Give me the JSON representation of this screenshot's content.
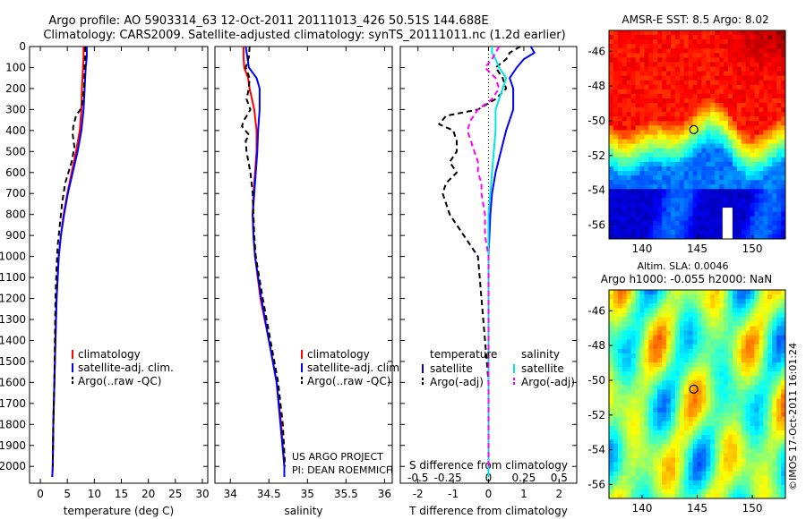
{
  "title_line1": "Argo profile: AO 5903314_63 12-Oct-2011 20111013_426 50.51S 144.688E",
  "title_line2": "Climatology: CARS2009. Satellite-adjusted climatology: synTS_20111011.nc (1.2d earlier)",
  "project_line1": "US ARGO PROJECT",
  "project_line2": "PI: DEAN ROEMMICH",
  "credit": "©IMOS 17-Oct-2011 16:01:24",
  "colors": {
    "climatology": "#ff0000",
    "satellite": "#0000ff",
    "argo": "#000000",
    "satellite_salinity": "#00e5e5",
    "argo_salinity": "#ff00ff"
  },
  "chart_data": [
    {
      "type": "line",
      "xlabel": "temperature (deg C)",
      "ylabel": "",
      "xlim": [
        -2,
        31
      ],
      "ylim": [
        2080,
        0
      ],
      "xticks": [
        "0",
        "5",
        "10",
        "15",
        "20",
        "25",
        "30"
      ],
      "xtick_values": [
        0,
        5,
        10,
        15,
        20,
        25,
        30
      ],
      "yticks": [
        "0",
        "100",
        "200",
        "300",
        "400",
        "500",
        "600",
        "700",
        "800",
        "900",
        "1000",
        "1100",
        "1200",
        "1300",
        "1400",
        "1500",
        "1600",
        "1700",
        "1800",
        "1900",
        "2000"
      ],
      "ytick_values": [
        0,
        100,
        200,
        300,
        400,
        500,
        600,
        700,
        800,
        900,
        1000,
        1100,
        1200,
        1300,
        1400,
        1500,
        1600,
        1700,
        1800,
        1900,
        2000
      ],
      "legend": [
        "climatology",
        "satellite-adj. clim.",
        "Argo(..raw -QC)"
      ],
      "series": [
        {
          "name": "climatology",
          "color": "#ff0000",
          "dash": "",
          "depth": [
            0,
            50,
            100,
            200,
            300,
            400,
            500,
            600,
            700,
            800,
            900,
            1000,
            1200,
            1400,
            1600,
            1800,
            2000,
            2050
          ],
          "values": [
            8.0,
            8.0,
            7.9,
            7.7,
            7.6,
            7.3,
            6.6,
            5.8,
            5.0,
            4.3,
            3.8,
            3.4,
            3.0,
            2.8,
            2.6,
            2.4,
            2.3,
            2.2
          ]
        },
        {
          "name": "satellite-adj. clim.",
          "color": "#0000ff",
          "dash": "",
          "depth": [
            0,
            50,
            100,
            200,
            300,
            400,
            500,
            600,
            700,
            800,
            900,
            1000,
            1200,
            1400,
            1600,
            1800,
            2000,
            2050
          ],
          "values": [
            8.6,
            8.6,
            8.4,
            8.2,
            8.0,
            7.6,
            6.9,
            6.0,
            5.1,
            4.4,
            3.8,
            3.4,
            3.0,
            2.8,
            2.6,
            2.4,
            2.3,
            2.2
          ]
        },
        {
          "name": "Argo(..raw -QC)",
          "color": "#000000",
          "dash": "6,4",
          "depth": [
            0,
            50,
            100,
            200,
            280,
            300,
            330,
            380,
            420,
            480,
            550,
            650,
            750,
            850,
            950,
            1050,
            1200,
            1400,
            1600,
            1800,
            2000
          ],
          "values": [
            8.3,
            8.3,
            8.2,
            8.1,
            7.7,
            7.4,
            6.6,
            6.1,
            6.0,
            6.3,
            5.8,
            4.6,
            4.0,
            3.6,
            3.2,
            3.0,
            2.8,
            2.7,
            2.6,
            2.4,
            2.3
          ]
        }
      ]
    },
    {
      "type": "line",
      "xlabel": "salinity",
      "ylabel": "",
      "xlim": [
        33.8,
        36.1
      ],
      "ylim": [
        2080,
        0
      ],
      "xticks": [
        "34",
        "34.5",
        "35",
        "35.5",
        "36"
      ],
      "xtick_values": [
        34,
        34.5,
        35,
        35.5,
        36
      ],
      "legend": [
        "climatology",
        "satellite-adj. clim.",
        "Argo(..raw -QC)"
      ],
      "series": [
        {
          "name": "climatology",
          "color": "#ff0000",
          "dash": "",
          "depth": [
            0,
            50,
            100,
            150,
            200,
            300,
            400,
            500,
            600,
            700,
            800,
            900,
            1000,
            1200,
            1400,
            1600,
            1800,
            2000,
            2050
          ],
          "values": [
            34.17,
            34.17,
            34.18,
            34.23,
            34.25,
            34.31,
            34.34,
            34.34,
            34.32,
            34.3,
            34.29,
            34.3,
            34.32,
            34.39,
            34.5,
            34.6,
            34.66,
            34.7,
            34.7
          ]
        },
        {
          "name": "satellite-adj. clim.",
          "color": "#0000ff",
          "dash": "",
          "depth": [
            0,
            50,
            100,
            150,
            200,
            300,
            400,
            500,
            600,
            700,
            800,
            900,
            1000,
            1200,
            1400,
            1600,
            1800,
            2000,
            2050
          ],
          "values": [
            34.2,
            34.22,
            34.24,
            34.34,
            34.38,
            34.38,
            34.36,
            34.35,
            34.33,
            34.31,
            34.29,
            34.3,
            34.32,
            34.4,
            34.5,
            34.6,
            34.65,
            34.7,
            34.7
          ]
        },
        {
          "name": "Argo(..raw -QC)",
          "color": "#000000",
          "dash": "6,4",
          "depth": [
            0,
            50,
            100,
            150,
            200,
            250,
            300,
            350,
            380,
            420,
            450,
            500,
            600,
            700,
            800,
            900,
            1000,
            1200,
            1400,
            1600,
            1800,
            2000
          ],
          "values": [
            34.25,
            34.24,
            34.2,
            34.25,
            34.24,
            34.21,
            34.26,
            34.18,
            34.15,
            34.24,
            34.2,
            34.21,
            34.26,
            34.29,
            34.3,
            34.31,
            34.33,
            34.42,
            34.52,
            34.62,
            34.68,
            34.71
          ]
        }
      ]
    },
    {
      "type": "line",
      "xlabel": "T difference from climatology",
      "xlabel2": "S difference from climatology",
      "ylabel": "",
      "xlim": [
        -2.5,
        2.5
      ],
      "ylim": [
        2080,
        0
      ],
      "xticks": [
        "-2",
        "-1",
        "0",
        "1",
        "2"
      ],
      "xtick_values": [
        -2,
        -1,
        0,
        1,
        2
      ],
      "xticks2": [
        "-0.5",
        "-0.25",
        "0",
        "0.25",
        "0.5"
      ],
      "xtick2_values": [
        -2,
        -1,
        0,
        1,
        2
      ],
      "legend_temperature_title": "temperature",
      "legend_salinity_title": "salinity",
      "legend_temperature": [
        "satellite",
        "Argo(-adj)"
      ],
      "legend_salinity": [
        "satellite",
        "Argo(-adj)"
      ],
      "series": [
        {
          "name": "satellite",
          "color": "#0000ff",
          "dash": "",
          "depth": [
            0,
            30,
            60,
            100,
            150,
            200,
            300,
            400,
            500,
            600,
            700,
            800,
            1000,
            1200,
            1400,
            1600,
            1800,
            2000,
            2050
          ],
          "values": [
            1.2,
            1.3,
            1.0,
            0.8,
            0.6,
            0.7,
            0.7,
            0.5,
            0.35,
            0.2,
            0.1,
            0.05,
            0.0,
            0.0,
            0.0,
            0.0,
            0.0,
            0.0,
            0.0
          ]
        },
        {
          "name": "Argo(-adj)",
          "color": "#000000",
          "dash": "6,4",
          "depth": [
            0,
            30,
            60,
            100,
            150,
            200,
            250,
            300,
            330,
            370,
            400,
            450,
            500,
            550,
            600,
            650,
            700,
            800,
            900,
            1000,
            1200,
            1400,
            1600,
            1800,
            2000
          ],
          "values": [
            0.9,
            0.6,
            0.5,
            0.2,
            0.4,
            0.5,
            0.2,
            -0.3,
            -1.2,
            -1.4,
            -1.0,
            -0.9,
            -0.9,
            -1.1,
            -0.9,
            -1.2,
            -1.3,
            -1.1,
            -0.7,
            -0.3,
            -0.2,
            -0.1,
            0.0,
            0.0,
            0.0
          ]
        },
        {
          "name": "satellite",
          "color": "#00e5e5",
          "dash": "",
          "depth": [
            0,
            30,
            60,
            100,
            150,
            200,
            300,
            400,
            500,
            600,
            700,
            800,
            1000,
            1200,
            1400,
            1600,
            1800,
            2000,
            2050
          ],
          "values": [
            0.1,
            0.1,
            0.2,
            0.3,
            0.5,
            0.4,
            0.2,
            0.2,
            0.15,
            0.1,
            0.05,
            0.0,
            0.0,
            0.0,
            0.0,
            0.0,
            0.0,
            0.0,
            0.0
          ]
        },
        {
          "name": "Argo(-adj)",
          "color": "#ff00ff",
          "dash": "6,4",
          "depth": [
            0,
            30,
            60,
            100,
            150,
            200,
            250,
            300,
            350,
            400,
            450,
            500,
            550,
            600,
            650,
            700,
            800,
            900,
            1000,
            1200,
            1400,
            1600,
            1800,
            2000
          ],
          "values": [
            0.3,
            0.2,
            0.1,
            -0.1,
            0.2,
            0.3,
            0.1,
            -0.3,
            -0.5,
            -0.6,
            -0.5,
            -0.4,
            -0.3,
            -0.3,
            -0.2,
            -0.2,
            -0.1,
            -0.1,
            0.0,
            0.0,
            0.0,
            0.0,
            0.0,
            0.0
          ]
        }
      ]
    },
    {
      "type": "heatmap",
      "title": "AMSR-E SST: 8.5 Argo: 8.02",
      "xticks": [
        "140",
        "145",
        "150"
      ],
      "xtick_values": [
        140,
        145,
        150
      ],
      "yticks": [
        "-46",
        "-48",
        "-50",
        "-52",
        "-54",
        "-56"
      ],
      "ytick_values": [
        -46,
        -48,
        -50,
        -52,
        -54,
        -56
      ],
      "xlim": [
        137,
        153
      ],
      "ylim": [
        -56.8,
        -44.8
      ],
      "marker": {
        "lon": 144.688,
        "lat": -50.51
      }
    },
    {
      "type": "heatmap",
      "title": "Altim. SLA: 0.0046",
      "subtitle": "Argo h1000: -0.055 h2000: NaN",
      "xticks": [
        "140",
        "145",
        "150"
      ],
      "xtick_values": [
        140,
        145,
        150
      ],
      "yticks": [
        "-46",
        "-48",
        "-50",
        "-52",
        "-54",
        "-56"
      ],
      "ytick_values": [
        -46,
        -48,
        -50,
        -52,
        -54,
        -56
      ],
      "xlim": [
        137,
        153
      ],
      "ylim": [
        -56.8,
        -44.8
      ],
      "marker": {
        "lon": 144.688,
        "lat": -50.51
      }
    }
  ]
}
